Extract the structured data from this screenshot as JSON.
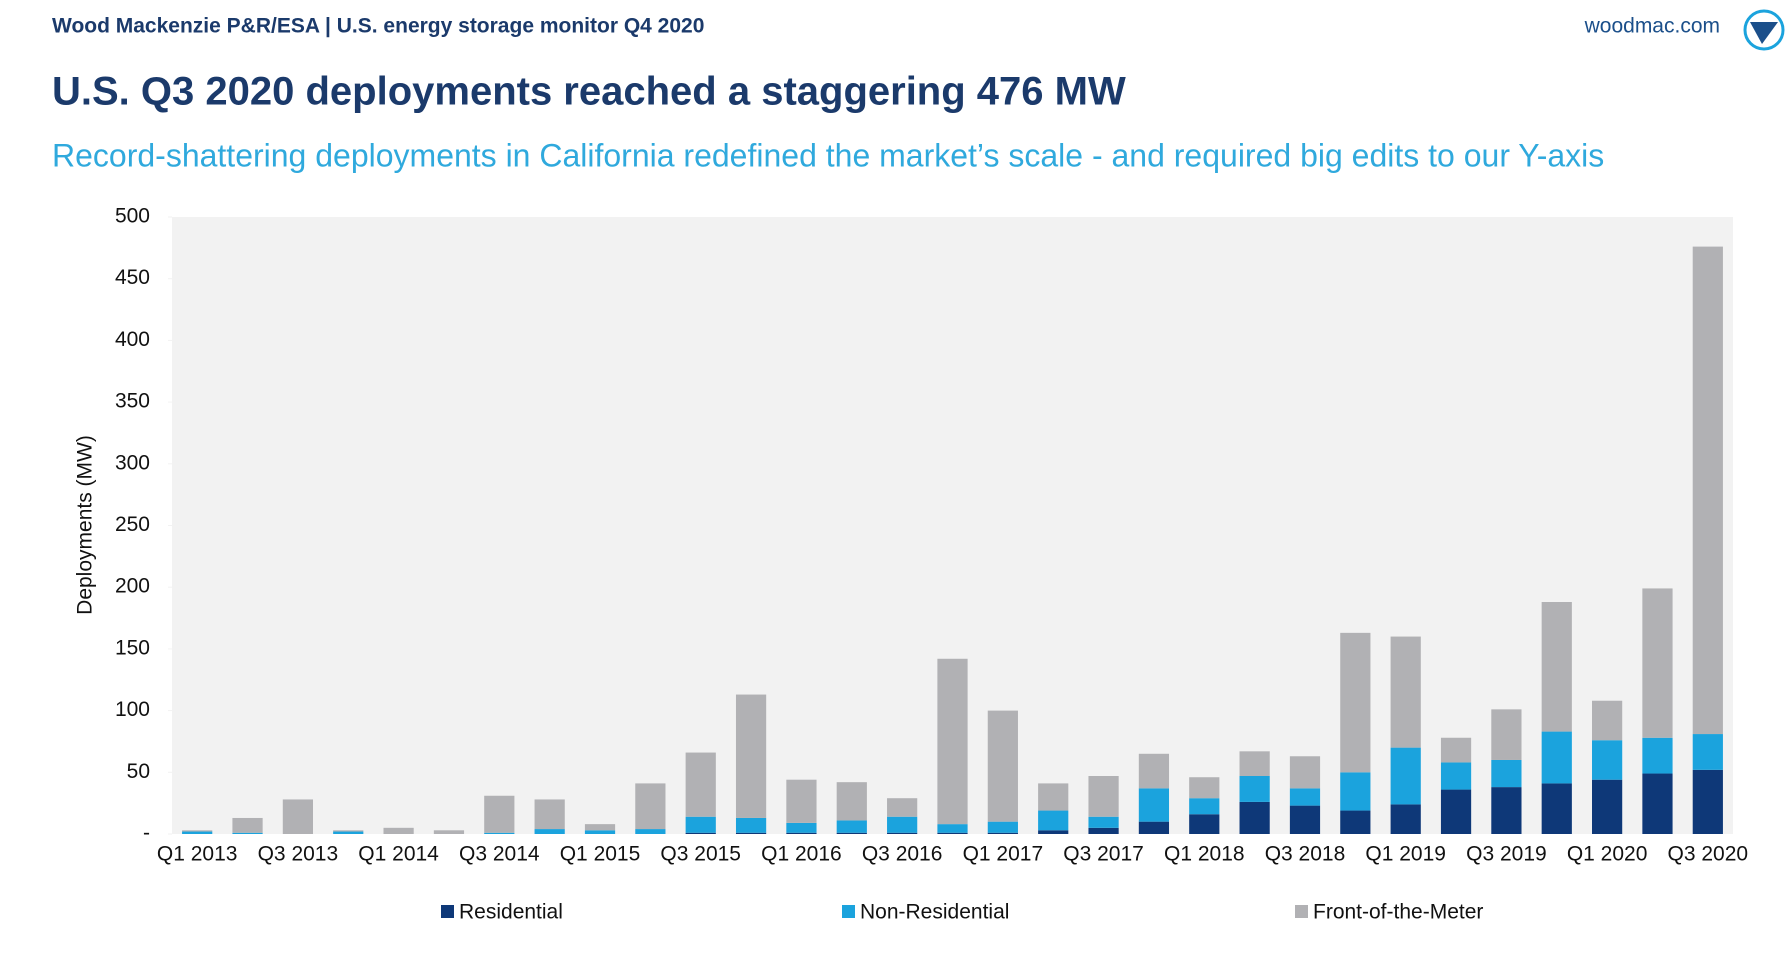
{
  "header": {
    "source": "Wood Mackenzie P&R/ESA | U.S. energy storage monitor Q4 2020",
    "site": "woodmac.com"
  },
  "chart_data": {
    "type": "stacked_bar",
    "title": "U.S. Q3 2020 deployments reached a staggering 476 MW",
    "subtitle": "Record-shattering deployments in California redefined the market’s scale - and required big edits to our Y-axis",
    "y_label": "Deployments (MW)",
    "categories": [
      "Q1 2013",
      null,
      "Q3 2013",
      null,
      "Q1 2014",
      null,
      "Q3 2014",
      null,
      "Q1 2015",
      null,
      "Q3 2015",
      null,
      "Q1 2016",
      null,
      "Q3 2016",
      null,
      "Q1 2017",
      null,
      "Q3 2017",
      null,
      "Q1 2018",
      null,
      "Q3 2018",
      null,
      "Q1 2019",
      null,
      "Q3 2019",
      null,
      "Q1 2020",
      null,
      "Q3 2020"
    ],
    "series": [
      {
        "name": "Residential",
        "color": "#0e3878",
        "values": [
          0,
          0,
          0,
          0,
          0,
          0,
          0,
          0,
          0,
          0,
          1,
          1,
          1,
          1,
          1,
          1,
          1,
          3,
          5,
          10,
          16,
          26,
          23,
          19,
          24,
          36,
          38,
          41,
          44,
          49,
          52
        ]
      },
      {
        "name": "Non-Residential",
        "color": "#1ba3dd",
        "values": [
          2,
          1,
          0,
          2,
          0,
          0,
          1,
          4,
          3,
          4,
          13,
          12,
          8,
          10,
          13,
          7,
          9,
          16,
          9,
          27,
          13,
          21,
          14,
          31,
          46,
          22,
          22,
          42,
          32,
          29,
          29
        ]
      },
      {
        "name": "Front-of-the-Meter",
        "color": "#b1b1b4",
        "values": [
          1,
          12,
          28,
          1,
          5,
          3,
          30,
          24,
          5,
          37,
          52,
          100,
          35,
          31,
          15,
          134,
          90,
          22,
          33,
          28,
          17,
          20,
          26,
          113,
          90,
          20,
          41,
          105,
          32,
          121,
          395
        ]
      }
    ],
    "ylim": [
      0,
      500
    ],
    "yticks": [
      {
        "value": 0,
        "label": "-"
      },
      50,
      100,
      150,
      200,
      250,
      300,
      350,
      400,
      450,
      500
    ],
    "grid": false,
    "legend": "bottom"
  }
}
